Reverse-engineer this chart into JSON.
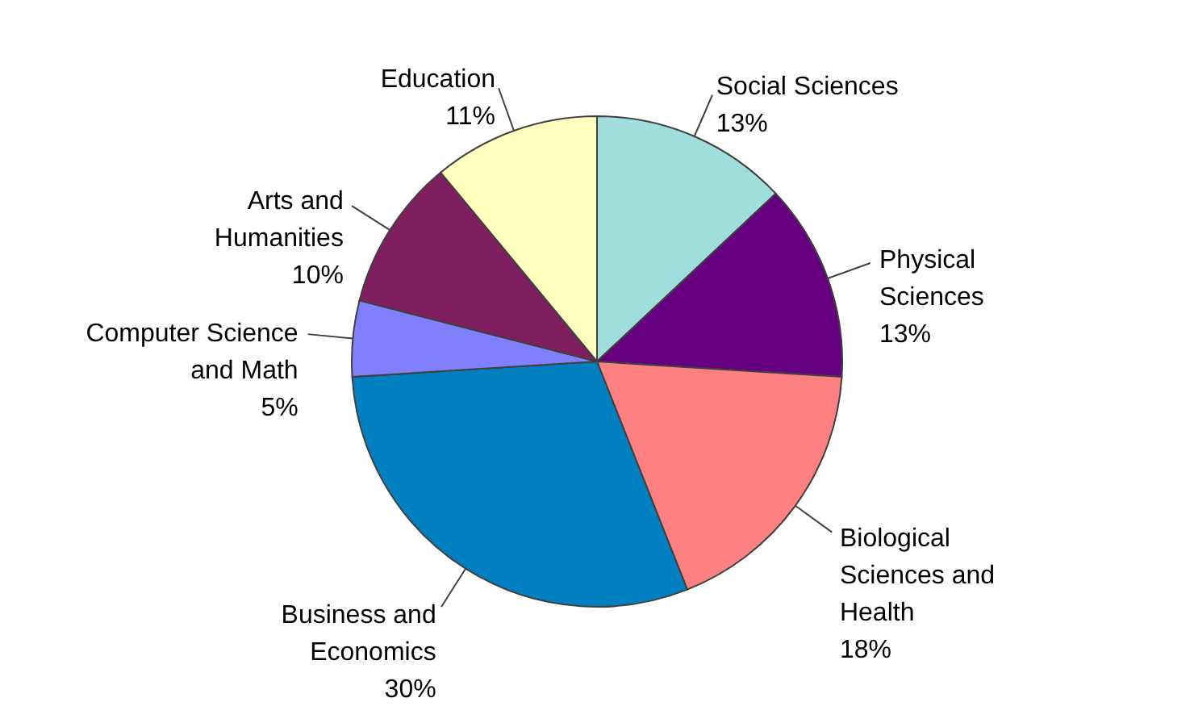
{
  "chart_data": {
    "type": "pie",
    "categories": [
      "Social Sciences",
      "Physical Sciences",
      "Biological Sciences and Health",
      "Business and Economics",
      "Computer Science and Math",
      "Arts and Humanities",
      "Education"
    ],
    "values": [
      13,
      13,
      18,
      30,
      5,
      10,
      11
    ],
    "colors": [
      "#a0dede",
      "#660080",
      "#ff8080",
      "#0080c0",
      "#8080ff",
      "#801f5f",
      "#ffffc0"
    ],
    "value_labels": [
      "13%",
      "13%",
      "18%",
      "30%",
      "5%",
      "10%",
      "11%"
    ]
  }
}
